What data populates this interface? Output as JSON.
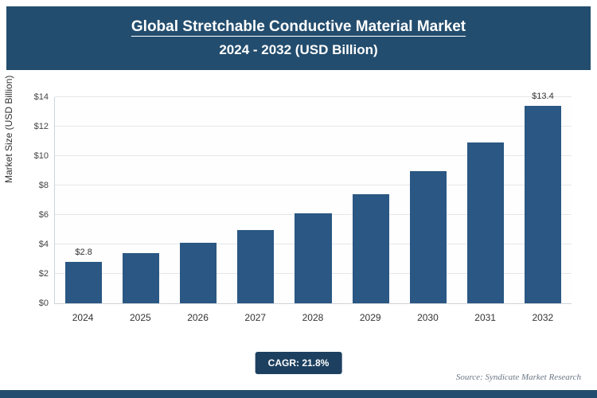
{
  "header": {
    "title_line1": "Global Stretchable Conductive Material Market",
    "title_line2": "2024 - 2032 (USD Billion)"
  },
  "colors": {
    "header_bg": "#234d6e",
    "bar_fill": "#2a5783",
    "badge_bg": "#1d4060",
    "gridline": "#e4e7ea"
  },
  "chart_data": {
    "type": "bar",
    "title": "Global Stretchable Conductive Material Market",
    "subtitle": "2024 - 2032 (USD Billion)",
    "categories": [
      "2024",
      "2025",
      "2026",
      "2027",
      "2028",
      "2029",
      "2030",
      "2031",
      "2032"
    ],
    "values": [
      2.8,
      3.4,
      4.1,
      5.0,
      6.1,
      7.4,
      9.0,
      10.9,
      13.4
    ],
    "bar_labels": [
      "$2.8",
      "",
      "",
      "",
      "",
      "",
      "",
      "",
      "$13.4"
    ],
    "xlabel": "",
    "ylabel": "Market Size (USD Billion)",
    "ylim": [
      0,
      14
    ],
    "ytick_step": 2,
    "ytick_prefix": "$",
    "grid": true,
    "legend": false
  },
  "footer": {
    "cagr_label": "CAGR: 21.8%",
    "source": "Source: Syndicate Market Research"
  }
}
